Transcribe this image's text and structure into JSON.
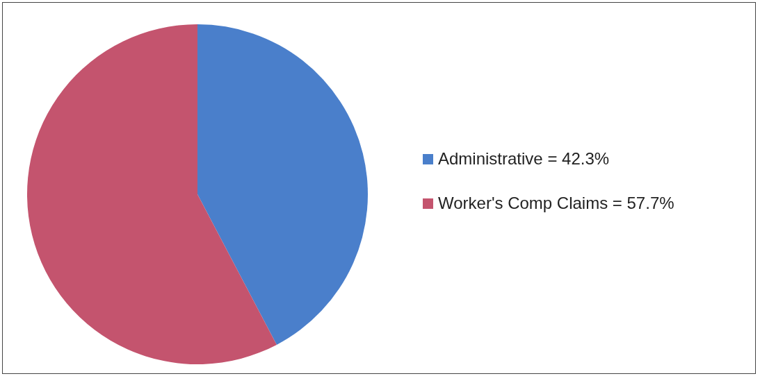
{
  "chart_data": {
    "type": "pie",
    "categories": [
      "Administrative = 42.3%",
      "Worker's Comp Claims = 57.7%"
    ],
    "values": [
      42.3,
      57.7
    ],
    "colors": [
      "#4a7fcb",
      "#c4546e"
    ],
    "legend": "right"
  }
}
